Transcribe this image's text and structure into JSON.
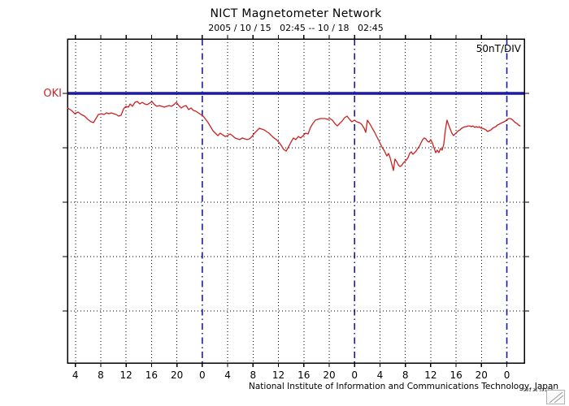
{
  "header": {
    "title": "NICT Magnetometer Network",
    "subtitle": "2005 / 10 / 15   02:45 -- 10 / 18   02:45"
  },
  "plot": {
    "scale_label": "50nT/DIV",
    "station_label": "OKI",
    "station_color": "#cc2222",
    "baseline_color": "#1a1aa6",
    "grid_color": "#000000",
    "border_color": "#000000"
  },
  "footer": {
    "institute": "National Institute of Information and Communications Technology, Japan",
    "stamp": "291 21 5112 ▪"
  },
  "chart_data": {
    "type": "line",
    "title": "NICT Magnetometer Network",
    "time_range_label": "2005 / 10 / 15   02:45 -- 10 / 18   02:45",
    "station": "OKI",
    "y_scale_label": "50nT/DIV",
    "grid": true,
    "x_axis": {
      "range_hours": [
        0,
        72
      ],
      "ticks": [
        {
          "t": 1.25,
          "label": "4"
        },
        {
          "t": 5.25,
          "label": "8"
        },
        {
          "t": 9.25,
          "label": "12"
        },
        {
          "t": 13.25,
          "label": "16"
        },
        {
          "t": 17.25,
          "label": "20"
        },
        {
          "t": 21.25,
          "label": "0"
        },
        {
          "t": 25.25,
          "label": "4"
        },
        {
          "t": 29.25,
          "label": "8"
        },
        {
          "t": 33.25,
          "label": "12"
        },
        {
          "t": 37.25,
          "label": "16"
        },
        {
          "t": 41.25,
          "label": "20"
        },
        {
          "t": 45.25,
          "label": "0"
        },
        {
          "t": 49.25,
          "label": "4"
        },
        {
          "t": 53.25,
          "label": "8"
        },
        {
          "t": 57.25,
          "label": "12"
        },
        {
          "t": 61.25,
          "label": "16"
        },
        {
          "t": 65.25,
          "label": "20"
        },
        {
          "t": 69.25,
          "label": "0"
        }
      ]
    },
    "y_axis": {
      "division_nT": 50,
      "baseline_nT": 0,
      "baseline_station": "OKI",
      "gridlines_nT": [
        -50,
        -100,
        -150,
        -200
      ],
      "ylim_nT": [
        -248,
        50
      ]
    },
    "day_boundaries_t": [
      21.25,
      45.25,
      69.25
    ],
    "series": [
      {
        "name": "OKI",
        "color": "#cc2222",
        "points": [
          [
            0,
            -13.4
          ],
          [
            0.64,
            -15.7
          ],
          [
            1.15,
            -18.7
          ],
          [
            1.67,
            -17.2
          ],
          [
            2.18,
            -19.4
          ],
          [
            2.69,
            -20.9
          ],
          [
            3.2,
            -23.9
          ],
          [
            3.72,
            -26.1
          ],
          [
            4.1,
            -26.9
          ],
          [
            4.48,
            -23.1
          ],
          [
            4.87,
            -19.4
          ],
          [
            5.38,
            -18.7
          ],
          [
            5.77,
            -19.4
          ],
          [
            6.15,
            -17.9
          ],
          [
            6.53,
            -18.7
          ],
          [
            6.92,
            -17.9
          ],
          [
            7.3,
            -18.7
          ],
          [
            7.69,
            -19.4
          ],
          [
            8.07,
            -20.9
          ],
          [
            8.46,
            -20.1
          ],
          [
            8.84,
            -14.2
          ],
          [
            9.22,
            -11.9
          ],
          [
            9.61,
            -12.7
          ],
          [
            9.86,
            -9.7
          ],
          [
            10.25,
            -11.9
          ],
          [
            10.63,
            -8.2
          ],
          [
            11.02,
            -7.5
          ],
          [
            11.4,
            -9.7
          ],
          [
            11.79,
            -8.2
          ],
          [
            12.17,
            -9.7
          ],
          [
            12.55,
            -10.4
          ],
          [
            12.94,
            -9
          ],
          [
            13.32,
            -7.5
          ],
          [
            13.71,
            -10.4
          ],
          [
            14.09,
            -11.9
          ],
          [
            14.48,
            -11.2
          ],
          [
            14.86,
            -11.9
          ],
          [
            15.24,
            -12.7
          ],
          [
            15.63,
            -11.9
          ],
          [
            16.01,
            -11.2
          ],
          [
            16.4,
            -11.9
          ],
          [
            16.78,
            -10.4
          ],
          [
            17.17,
            -8.2
          ],
          [
            17.55,
            -11.2
          ],
          [
            17.93,
            -13.4
          ],
          [
            18.32,
            -11.9
          ],
          [
            18.7,
            -11.2
          ],
          [
            19.09,
            -14.9
          ],
          [
            19.47,
            -13.4
          ],
          [
            19.86,
            -15.7
          ],
          [
            20.24,
            -16.4
          ],
          [
            20.62,
            -17.9
          ],
          [
            21.01,
            -19.4
          ],
          [
            21.39,
            -20.9
          ],
          [
            21.78,
            -23.9
          ],
          [
            22.16,
            -26.9
          ],
          [
            22.55,
            -30.6
          ],
          [
            22.93,
            -34.3
          ],
          [
            23.31,
            -36.6
          ],
          [
            23.7,
            -38.8
          ],
          [
            24.08,
            -36.6
          ],
          [
            24.47,
            -38.1
          ],
          [
            24.85,
            -39.6
          ],
          [
            25.24,
            -38.8
          ],
          [
            25.62,
            -37.3
          ],
          [
            26,
            -38.8
          ],
          [
            26.39,
            -41
          ],
          [
            26.77,
            -41.8
          ],
          [
            27.16,
            -42.5
          ],
          [
            27.54,
            -41
          ],
          [
            27.93,
            -41.8
          ],
          [
            28.31,
            -42.5
          ],
          [
            28.69,
            -41.8
          ],
          [
            29.08,
            -39.6
          ],
          [
            29.46,
            -36.6
          ],
          [
            29.85,
            -34.3
          ],
          [
            30.23,
            -32.1
          ],
          [
            30.62,
            -32.8
          ],
          [
            31,
            -33.6
          ],
          [
            31.38,
            -35.1
          ],
          [
            31.77,
            -36.6
          ],
          [
            32.15,
            -38.8
          ],
          [
            32.54,
            -41
          ],
          [
            32.92,
            -42.5
          ],
          [
            33.31,
            -44.8
          ],
          [
            33.69,
            -47.8
          ],
          [
            34.07,
            -51.5
          ],
          [
            34.46,
            -53
          ],
          [
            34.84,
            -49.3
          ],
          [
            35.23,
            -44.8
          ],
          [
            35.61,
            -41
          ],
          [
            36,
            -42.5
          ],
          [
            36.38,
            -39.6
          ],
          [
            36.76,
            -41
          ],
          [
            37.15,
            -38.8
          ],
          [
            37.53,
            -36.6
          ],
          [
            37.92,
            -37.3
          ],
          [
            38.3,
            -31.3
          ],
          [
            38.69,
            -27.6
          ],
          [
            39.07,
            -24.6
          ],
          [
            39.45,
            -23.9
          ],
          [
            39.84,
            -23.1
          ],
          [
            40.22,
            -23.1
          ],
          [
            40.61,
            -23.1
          ],
          [
            40.99,
            -23.9
          ],
          [
            41.38,
            -23.1
          ],
          [
            41.76,
            -24.6
          ],
          [
            42.14,
            -27.6
          ],
          [
            42.53,
            -29.9
          ],
          [
            42.91,
            -27.6
          ],
          [
            43.3,
            -25.4
          ],
          [
            43.68,
            -22.4
          ],
          [
            44.07,
            -20.9
          ],
          [
            44.45,
            -23.9
          ],
          [
            44.83,
            -26.1
          ],
          [
            45.22,
            -24.6
          ],
          [
            45.6,
            -26.1
          ],
          [
            45.99,
            -26.9
          ],
          [
            46.37,
            -28.4
          ],
          [
            46.76,
            -32.1
          ],
          [
            47.01,
            -35.8
          ],
          [
            47.27,
            -24.6
          ],
          [
            47.52,
            -26.9
          ],
          [
            47.78,
            -29.1
          ],
          [
            48.04,
            -32.1
          ],
          [
            48.42,
            -35.8
          ],
          [
            48.8,
            -40.3
          ],
          [
            49.19,
            -44.8
          ],
          [
            49.57,
            -49.3
          ],
          [
            49.96,
            -53
          ],
          [
            50.34,
            -57.5
          ],
          [
            50.6,
            -55.2
          ],
          [
            50.85,
            -59
          ],
          [
            51.11,
            -64.9
          ],
          [
            51.37,
            -70.9
          ],
          [
            51.62,
            -60.4
          ],
          [
            51.88,
            -62.7
          ],
          [
            52.14,
            -65.7
          ],
          [
            52.39,
            -67.2
          ],
          [
            52.65,
            -66.4
          ],
          [
            52.9,
            -64.2
          ],
          [
            53.16,
            -62.7
          ],
          [
            53.42,
            -61.2
          ],
          [
            53.67,
            -59
          ],
          [
            53.93,
            -55.2
          ],
          [
            54.18,
            -53.7
          ],
          [
            54.44,
            -56
          ],
          [
            54.7,
            -54.5
          ],
          [
            54.95,
            -53
          ],
          [
            55.21,
            -50.7
          ],
          [
            55.47,
            -48.5
          ],
          [
            55.72,
            -45.5
          ],
          [
            55.98,
            -42.5
          ],
          [
            56.23,
            -41
          ],
          [
            56.49,
            -41.8
          ],
          [
            56.75,
            -44
          ],
          [
            57,
            -44.8
          ],
          [
            57.26,
            -42.5
          ],
          [
            57.51,
            -45.5
          ],
          [
            57.77,
            -50
          ],
          [
            58.03,
            -54.5
          ],
          [
            58.28,
            -52.2
          ],
          [
            58.54,
            -54.5
          ],
          [
            58.79,
            -50.7
          ],
          [
            59.05,
            -52.2
          ],
          [
            59.31,
            -47
          ],
          [
            59.56,
            -33.6
          ],
          [
            59.82,
            -24.6
          ],
          [
            60.08,
            -29.1
          ],
          [
            60.33,
            -32.8
          ],
          [
            60.59,
            -36.6
          ],
          [
            60.84,
            -38.8
          ],
          [
            61.1,
            -37.3
          ],
          [
            61.36,
            -35.8
          ],
          [
            61.61,
            -34.3
          ],
          [
            61.87,
            -33.6
          ],
          [
            62.12,
            -32.1
          ],
          [
            62.38,
            -31.3
          ],
          [
            62.64,
            -30.6
          ],
          [
            62.89,
            -30.6
          ],
          [
            63.15,
            -29.9
          ],
          [
            63.4,
            -29.9
          ],
          [
            63.66,
            -30.6
          ],
          [
            63.92,
            -29.9
          ],
          [
            64.17,
            -31.3
          ],
          [
            64.43,
            -30.6
          ],
          [
            64.69,
            -31.3
          ],
          [
            64.94,
            -30.6
          ],
          [
            65.2,
            -32.1
          ],
          [
            65.45,
            -32.1
          ],
          [
            65.71,
            -32.8
          ],
          [
            65.97,
            -33.6
          ],
          [
            66.22,
            -35.1
          ],
          [
            66.48,
            -34.3
          ],
          [
            66.73,
            -33.6
          ],
          [
            66.99,
            -32.1
          ],
          [
            67.25,
            -31.3
          ],
          [
            67.5,
            -30.6
          ],
          [
            67.76,
            -29.1
          ],
          [
            68.02,
            -28.4
          ],
          [
            68.27,
            -27.6
          ],
          [
            68.53,
            -26.9
          ],
          [
            68.78,
            -26.1
          ],
          [
            69.04,
            -25.4
          ],
          [
            69.3,
            -23.9
          ],
          [
            69.55,
            -23.1
          ],
          [
            69.81,
            -23.1
          ],
          [
            70.06,
            -23.9
          ],
          [
            70.32,
            -25.4
          ],
          [
            70.58,
            -26.9
          ],
          [
            70.83,
            -27.6
          ],
          [
            71.09,
            -29.1
          ],
          [
            71.34,
            -29.9
          ]
        ]
      }
    ]
  }
}
